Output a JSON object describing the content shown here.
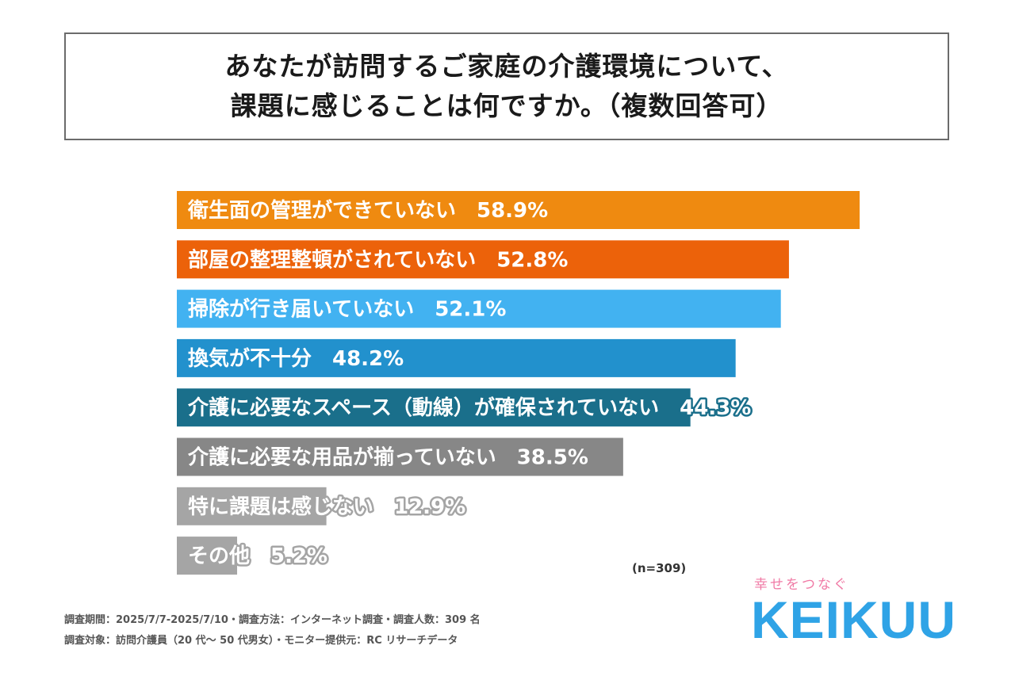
{
  "title": {
    "line1": "あなたが訪問するご家庭の介護環境について、",
    "line2": "課題に感じることは何ですか。（複数回答可）"
  },
  "chart_data": {
    "type": "bar",
    "orientation": "horizontal",
    "title": "あなたが訪問するご家庭の介護環境について、課題に感じることは何ですか。（複数回答可）",
    "categories": [
      "衛生面の管理ができていない",
      "部屋の整理整頓がされていない",
      "掃除が行き届いていない",
      "換気が不十分",
      "介護に必要なスペース（動線）が確保されていない",
      "介護に必要な用品が揃っていない",
      "特に課題は感じない",
      "その他"
    ],
    "values": [
      58.9,
      52.8,
      52.1,
      48.2,
      44.3,
      38.5,
      12.9,
      5.2
    ],
    "value_labels": [
      "58.9%",
      "52.8%",
      "52.1%",
      "48.2%",
      "44.3%",
      "38.5%",
      "12.9%",
      "5.2%"
    ],
    "colors": [
      "#ef8a10",
      "#ec620a",
      "#42b2f1",
      "#2291cd",
      "#1a6f8b",
      "#878787",
      "#a5a5a5",
      "#a5a5a5"
    ],
    "label_outline_colors": [
      "#ef8a10",
      "#ec620a",
      "#42b2f1",
      "#2291cd",
      "#1a6f8b",
      "#878787",
      "#a5a5a5",
      "#a5a5a5"
    ],
    "xlim": [
      0,
      60
    ],
    "grid": false,
    "legend": "none"
  },
  "sample_note": "(n=309)",
  "footer": {
    "line1": "調査期間：2025/7/7-2025/7/10・調査方法：インターネット調査・調査人数：309 名",
    "line2": "調査対象：訪問介護員（20 代～ 50 代男女）・モニター提供元：RC リサーチデータ"
  },
  "brand": {
    "tagline": "幸せをつなぐ",
    "logo": "KEIKUU"
  }
}
